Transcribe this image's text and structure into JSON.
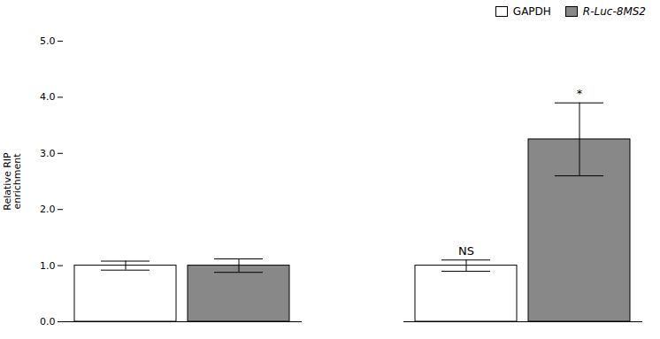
{
  "chart_data": {
    "type": "bar",
    "categories": [
      null,
      null
    ],
    "series": [
      {
        "name": "GAPDH",
        "color": "#ffffff",
        "values": [
          1.0,
          1.0
        ],
        "errors": [
          0.08,
          0.1
        ]
      },
      {
        "name": "R-Luc-8MS2",
        "color": "#888888",
        "values": [
          1.0,
          3.25
        ],
        "errors": [
          0.12,
          0.65
        ]
      }
    ],
    "ylabel": "Relative RIP\nenrichment",
    "ylim": [
      0,
      5
    ],
    "yticks": [
      0,
      1,
      2,
      3,
      4,
      5
    ],
    "grid": false,
    "legend": "upper right",
    "tick_labels": "y",
    "annotations": [
      {
        "text": "*",
        "category_index": 1,
        "series": "R-Luc-8MS2"
      },
      {
        "text": "NS",
        "category_index": 1,
        "series": "GAPDH"
      }
    ]
  }
}
